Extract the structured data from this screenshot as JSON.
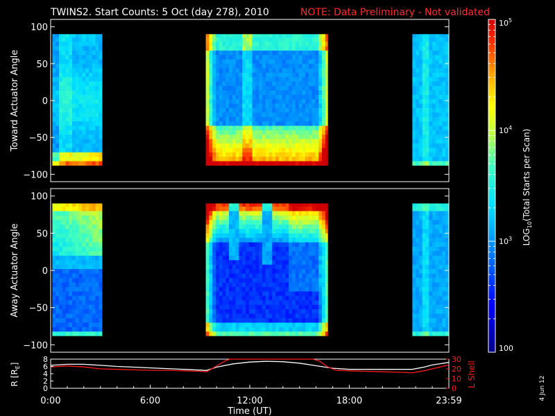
{
  "header": {
    "title": "TWINS2. Start Counts:  5 Oct (day 278), 2010",
    "note": "NOTE: Data Preliminary - Not validated"
  },
  "colors": {
    "note": "#ff2a2a",
    "r_line": "#ffffff",
    "lshell_line": "#ff1a1a",
    "axes": "#ffffff"
  },
  "date_stamp": "4 Jun 12",
  "colorbar": {
    "label_prefix": "LOG",
    "label_sub": "10",
    "label_suffix": "(Total Starts per Scan)",
    "scale": "log",
    "range": [
      100,
      100000
    ],
    "tick_labels": [
      "100",
      "10",
      "10",
      "10"
    ],
    "tick_exponents": [
      "",
      "3",
      "4",
      "5"
    ]
  },
  "chart_data": [
    {
      "type": "heatmap",
      "ylabel": "Toward Actuator Angle",
      "ylim": [
        -110,
        110
      ],
      "yticks": [
        -100,
        -50,
        0,
        50,
        100
      ],
      "ytick_labels": [
        "−100",
        "−50",
        "0",
        "50",
        "100"
      ],
      "data_extent_angle": [
        -88,
        90
      ],
      "time_blocks_hours": [
        [
          0.1,
          3.1
        ],
        [
          9.35,
          16.7
        ],
        [
          21.8,
          24.0
        ]
      ],
      "colormap": "rainbow-log"
    },
    {
      "type": "heatmap",
      "ylabel": "Away Actuator Angle",
      "ylim": [
        -110,
        110
      ],
      "yticks": [
        -100,
        -50,
        0,
        50,
        100
      ],
      "ytick_labels": [
        "−100",
        "−50",
        "0",
        "50",
        "100"
      ],
      "data_extent_angle": [
        -88,
        90
      ],
      "time_blocks_hours": [
        [
          0.1,
          3.1
        ],
        [
          9.35,
          16.7
        ],
        [
          21.8,
          24.0
        ]
      ],
      "colormap": "rainbow-log"
    },
    {
      "type": "line",
      "xlabel": "Time (UT)",
      "xlim": [
        0,
        24
      ],
      "xticks": [
        0,
        6,
        12,
        18,
        24
      ],
      "xtick_labels": [
        "0:00",
        "6:00",
        "12:00",
        "18:00",
        "23:59"
      ],
      "ylabel_left": "R [R",
      "ylabel_left_sub": "E",
      "ylabel_left_end": "]",
      "ylim_left": [
        0,
        8
      ],
      "yticks_left": [
        "0",
        "2",
        "4",
        "6",
        "8"
      ],
      "ylabel_right": "L Shell",
      "ylim_right": [
        0,
        30
      ],
      "yticks_right": [
        "0",
        "10",
        "20",
        "30"
      ],
      "series": [
        {
          "axis": "left",
          "x": [
            0,
            1,
            2,
            3,
            4,
            5,
            6,
            7,
            8,
            9,
            9.4,
            10,
            11,
            12,
            13,
            14,
            15,
            16,
            17,
            18,
            19,
            20,
            21,
            21.8,
            22.5,
            23,
            24
          ],
          "values": [
            6.3,
            6.6,
            6.6,
            6.3,
            6.0,
            5.8,
            5.6,
            5.4,
            5.2,
            5.0,
            4.9,
            5.8,
            6.7,
            7.2,
            7.4,
            7.3,
            6.9,
            6.2,
            5.5,
            5.2,
            5.2,
            5.2,
            5.2,
            5.2,
            5.8,
            6.4,
            7.1
          ]
        },
        {
          "axis": "right",
          "x": [
            0,
            1,
            2,
            3,
            4,
            5,
            6,
            7,
            8,
            9,
            9.4,
            10,
            10.5,
            10.8,
            15.8,
            16.2,
            16.7,
            17.2,
            18,
            19,
            20,
            21,
            21.8,
            22.5,
            23,
            24
          ],
          "values": [
            22,
            23,
            22,
            20,
            19.5,
            19,
            18.5,
            18.5,
            18,
            17.5,
            17,
            23,
            28,
            30,
            30,
            28,
            22,
            18.5,
            18,
            17.5,
            17,
            16.5,
            16,
            18,
            20,
            24
          ]
        }
      ]
    }
  ]
}
